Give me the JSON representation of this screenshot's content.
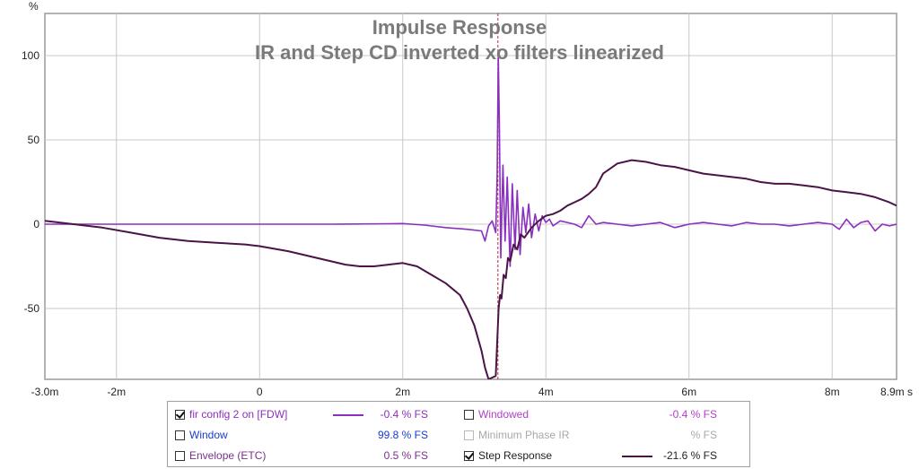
{
  "chart_data": {
    "type": "line",
    "title": "Impulse Response",
    "subtitle": "IR and Step CD inverted xo filters linearized",
    "ylabel": "%",
    "x_unit": "s",
    "xlim": [
      -3.0,
      8.9
    ],
    "ylim": [
      -92,
      125
    ],
    "y_ticks": [
      100,
      50,
      0,
      -50
    ],
    "x_ticks": [
      {
        "v": -3.0,
        "label": "-3.0m"
      },
      {
        "v": -2.0,
        "label": "-2m"
      },
      {
        "v": 0.0,
        "label": "0"
      },
      {
        "v": 2.0,
        "label": "2m"
      },
      {
        "v": 4.0,
        "label": "4m"
      },
      {
        "v": 6.0,
        "label": "6m"
      },
      {
        "v": 8.0,
        "label": "8m"
      },
      {
        "v": 8.9,
        "label": "8.9m s"
      }
    ],
    "grid": true,
    "marker_x": 3.33,
    "series": [
      {
        "name": "fir config 2 on [FDW]",
        "color": "#8a2fbe",
        "points": [
          [
            -3.0,
            0
          ],
          [
            -2.0,
            0
          ],
          [
            -1.0,
            0
          ],
          [
            0.0,
            0
          ],
          [
            1.0,
            0
          ],
          [
            1.8,
            0.3
          ],
          [
            2.0,
            0.4
          ],
          [
            2.3,
            -0.5
          ],
          [
            2.6,
            -2
          ],
          [
            2.9,
            -3
          ],
          [
            3.1,
            -4
          ],
          [
            3.15,
            -10
          ],
          [
            3.2,
            -1
          ],
          [
            3.25,
            2
          ],
          [
            3.3,
            -5
          ],
          [
            3.32,
            30
          ],
          [
            3.335,
            100
          ],
          [
            3.35,
            60
          ],
          [
            3.37,
            -20
          ],
          [
            3.4,
            35
          ],
          [
            3.43,
            -10
          ],
          [
            3.46,
            28
          ],
          [
            3.5,
            -25
          ],
          [
            3.53,
            24
          ],
          [
            3.57,
            -15
          ],
          [
            3.6,
            20
          ],
          [
            3.64,
            -18
          ],
          [
            3.68,
            10
          ],
          [
            3.72,
            -5
          ],
          [
            3.76,
            12
          ],
          [
            3.8,
            -8
          ],
          [
            3.85,
            6
          ],
          [
            3.9,
            -4
          ],
          [
            3.95,
            5
          ],
          [
            4.0,
            1
          ],
          [
            4.05,
            3
          ],
          [
            4.1,
            -1
          ],
          [
            4.2,
            2
          ],
          [
            4.3,
            1
          ],
          [
            4.4,
            0
          ],
          [
            4.5,
            -2
          ],
          [
            4.6,
            5
          ],
          [
            4.7,
            0
          ],
          [
            4.8,
            1
          ],
          [
            5.0,
            0
          ],
          [
            5.2,
            -1
          ],
          [
            5.4,
            0
          ],
          [
            5.6,
            1
          ],
          [
            5.8,
            -2
          ],
          [
            6.0,
            0
          ],
          [
            6.2,
            1
          ],
          [
            6.4,
            0
          ],
          [
            6.6,
            -1
          ],
          [
            6.8,
            1
          ],
          [
            7.0,
            0
          ],
          [
            7.2,
            0
          ],
          [
            7.4,
            -1
          ],
          [
            7.6,
            0
          ],
          [
            7.8,
            1
          ],
          [
            8.0,
            0
          ],
          [
            8.1,
            -3
          ],
          [
            8.2,
            3
          ],
          [
            8.3,
            -2
          ],
          [
            8.4,
            1
          ],
          [
            8.5,
            2
          ],
          [
            8.6,
            -4
          ],
          [
            8.7,
            0
          ],
          [
            8.8,
            -1
          ],
          [
            8.9,
            0
          ]
        ]
      },
      {
        "name": "Step Response",
        "color": "#4a1446",
        "points": [
          [
            -3.0,
            2
          ],
          [
            -2.6,
            0
          ],
          [
            -2.2,
            -2
          ],
          [
            -1.8,
            -5
          ],
          [
            -1.4,
            -8
          ],
          [
            -1.0,
            -10
          ],
          [
            -0.6,
            -11
          ],
          [
            -0.2,
            -12
          ],
          [
            0.0,
            -13
          ],
          [
            0.4,
            -16
          ],
          [
            0.8,
            -20
          ],
          [
            1.2,
            -24
          ],
          [
            1.4,
            -25
          ],
          [
            1.6,
            -25
          ],
          [
            1.8,
            -24
          ],
          [
            2.0,
            -23
          ],
          [
            2.2,
            -25
          ],
          [
            2.4,
            -30
          ],
          [
            2.6,
            -35
          ],
          [
            2.8,
            -42
          ],
          [
            2.9,
            -50
          ],
          [
            3.0,
            -60
          ],
          [
            3.1,
            -75
          ],
          [
            3.15,
            -85
          ],
          [
            3.2,
            -92
          ],
          [
            3.3,
            -90
          ],
          [
            3.34,
            -50
          ],
          [
            3.36,
            -42
          ],
          [
            3.38,
            -44
          ],
          [
            3.41,
            -30
          ],
          [
            3.44,
            -32
          ],
          [
            3.47,
            -20
          ],
          [
            3.5,
            -22
          ],
          [
            3.55,
            -12
          ],
          [
            3.6,
            -15
          ],
          [
            3.65,
            -6
          ],
          [
            3.7,
            -8
          ],
          [
            3.8,
            -2
          ],
          [
            3.9,
            2
          ],
          [
            4.0,
            5
          ],
          [
            4.1,
            6
          ],
          [
            4.2,
            8
          ],
          [
            4.3,
            11
          ],
          [
            4.4,
            13
          ],
          [
            4.5,
            15
          ],
          [
            4.6,
            18
          ],
          [
            4.7,
            22
          ],
          [
            4.8,
            30
          ],
          [
            5.0,
            36
          ],
          [
            5.2,
            38
          ],
          [
            5.4,
            37
          ],
          [
            5.6,
            35
          ],
          [
            5.8,
            34
          ],
          [
            6.0,
            32
          ],
          [
            6.2,
            30
          ],
          [
            6.4,
            29
          ],
          [
            6.6,
            28
          ],
          [
            6.8,
            27
          ],
          [
            7.0,
            25
          ],
          [
            7.2,
            24
          ],
          [
            7.4,
            24
          ],
          [
            7.6,
            23
          ],
          [
            7.8,
            22
          ],
          [
            8.0,
            20
          ],
          [
            8.2,
            19
          ],
          [
            8.4,
            18
          ],
          [
            8.6,
            16
          ],
          [
            8.8,
            13
          ],
          [
            8.9,
            11
          ]
        ]
      }
    ]
  },
  "legend": {
    "rows": [
      {
        "id": "fir",
        "label": "fir config 2 on [FDW]",
        "value": "-0.4 % FS",
        "checked": true,
        "label_color": "#8a2fbe",
        "value_color": "#8a2fbe",
        "swatch": "#8a2fbe"
      },
      {
        "id": "windowed",
        "label": "Windowed",
        "value": "-0.4 % FS",
        "checked": false,
        "label_color": "#b040c8",
        "value_color": "#b040c8",
        "swatch": ""
      },
      {
        "id": "window",
        "label": "Window",
        "value": "99.8 % FS",
        "checked": false,
        "label_color": "#1a3bd0",
        "value_color": "#1a3bd0",
        "swatch": ""
      },
      {
        "id": "minphase",
        "label": "Minimum Phase IR",
        "value": "% FS",
        "checked": false,
        "label_color": "#a8a8a8",
        "value_color": "#a8a8a8",
        "swatch": "",
        "disabled": true
      },
      {
        "id": "envelope",
        "label": "Envelope (ETC)",
        "value": "0.5 % FS",
        "checked": false,
        "label_color": "#7a2f8a",
        "value_color": "#7a2f8a",
        "swatch": ""
      },
      {
        "id": "step",
        "label": "Step Response",
        "value": "-21.6 % FS",
        "checked": true,
        "label_color": "#222222",
        "value_color": "#222222",
        "swatch": "#4a1446"
      }
    ]
  },
  "colors": {
    "grid": "#c8c8c8",
    "frame": "#9a9a9a",
    "title": "#7a7a7a",
    "marker": "#b0303a"
  }
}
